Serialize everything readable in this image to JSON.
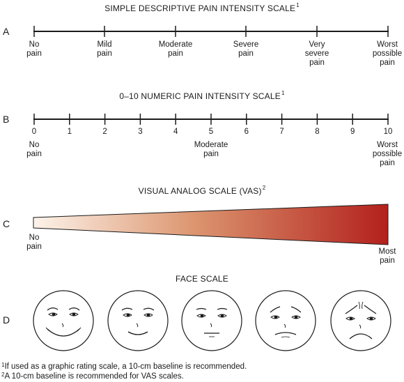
{
  "section_a": {
    "letter": "A",
    "title": "SIMPLE DESCRIPTIVE PAIN INTENSITY SCALE",
    "title_sup": "1",
    "labels": [
      "No\npain",
      "Mild\npain",
      "Moderate\npain",
      "Severe\npain",
      "Very\nsevere\npain",
      "Worst\npossible\npain"
    ]
  },
  "section_b": {
    "letter": "B",
    "title": "0–10 NUMERIC PAIN INTENSITY SCALE",
    "title_sup": "1",
    "numbers": [
      "0",
      "1",
      "2",
      "3",
      "4",
      "5",
      "6",
      "7",
      "8",
      "9",
      "10"
    ],
    "label_left": "No\npain",
    "label_mid": "Moderate\npain",
    "label_right": "Worst\npossible\npain"
  },
  "section_c": {
    "letter": "C",
    "title": "VISUAL ANALOG SCALE (VAS)",
    "title_sup": "2",
    "label_left": "No\npain",
    "label_right": "Most\npain",
    "gradient_start": "#fdf3ea",
    "gradient_end": "#b3201c"
  },
  "section_d": {
    "letter": "D",
    "title": "FACE SCALE",
    "faces": [
      "face-very-happy",
      "face-happy",
      "face-neutral",
      "face-sad",
      "face-very-sad"
    ]
  },
  "footnotes": {
    "note1_sup": "1",
    "note1": "If used as a graphic rating scale, a 10-cm baseline is recommended.",
    "note2_sup": "2",
    "note2": "A 10-cm baseline is recommended for VAS scales."
  }
}
